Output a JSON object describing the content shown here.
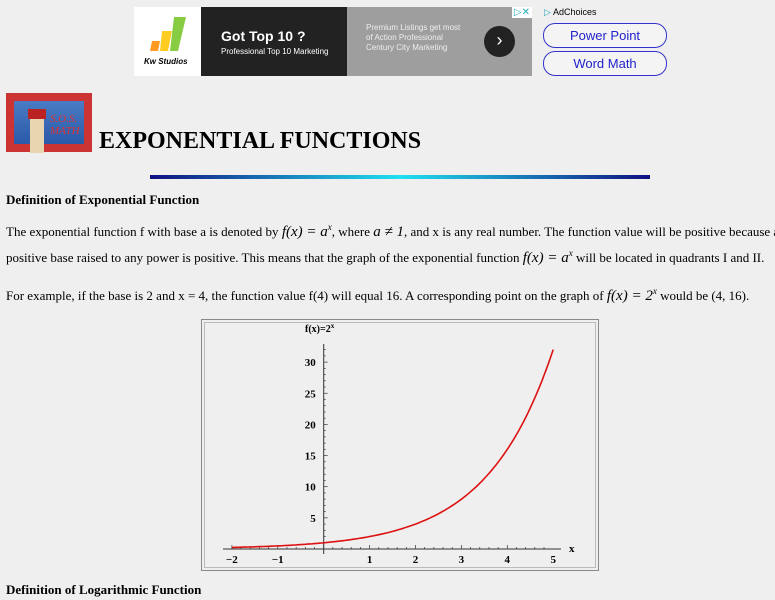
{
  "ad": {
    "brand": "Kw Studios",
    "headline": "Got Top 10 ?",
    "subline": "Professional Top 10 Marketing",
    "side_text": "Premium Listings get most of Action Professional Century City Marketing",
    "adchoices": "AdChoices",
    "close": "▷✕",
    "arrow": "›"
  },
  "nav": {
    "power_point": "Power Point",
    "word_math": "Word Math"
  },
  "logo": {
    "text": "S.O.S. MATH"
  },
  "title": "EXPONENTIAL FUNCTIONS",
  "sections": {
    "def_exp_heading": "Definition of Exponential Function",
    "p1a": "The exponential function f with base a is denoted by ",
    "p1_formula": "f(x) = a",
    "p1_sup": "x",
    "p1b": ", where ",
    "p1_cond": "a ≠ 1",
    "p1c": ", and x is any real number. The function value will be positive because a",
    "p2a": "positive base raised to any power is positive. This means that the graph of the exponential function ",
    "p2_formula": "f(x) = a",
    "p2_sup": "x",
    "p2b": " will be located in quadrants I and II.",
    "p3a": "For example, if the base is 2 and x = 4, the function value f(4) will equal 16. A corresponding point on the graph of ",
    "p3_formula": "f(x) = 2",
    "p3_sup": "x",
    "p3b": " would be (4, 16).",
    "def_log_heading": "Definition of Logarithmic Function"
  },
  "chart_data": {
    "type": "line",
    "title": "f(x)=2^x",
    "ylabel": "f(x)=2x",
    "xlabel": "x",
    "function": "2^x",
    "xlim": [
      -2,
      5
    ],
    "ylim": [
      0,
      32
    ],
    "xticks": [
      "−2",
      "−1",
      "1",
      "2",
      "3",
      "4",
      "5"
    ],
    "yticks": [
      "5",
      "10",
      "15",
      "20",
      "25",
      "30"
    ],
    "x": [
      -2,
      -1,
      0,
      1,
      2,
      3,
      4,
      5
    ],
    "y": [
      0.25,
      0.5,
      1,
      2,
      4,
      8,
      16,
      32
    ],
    "grid": false,
    "line_color": "#dd1111"
  }
}
